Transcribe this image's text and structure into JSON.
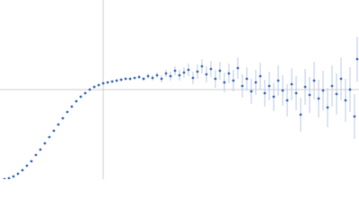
{
  "chart_data": {
    "type": "scatter",
    "xlim": [
      0,
      400
    ],
    "ylim": [
      0,
      200
    ],
    "vline": 115,
    "hline": 100,
    "series": [
      {
        "color": "#3a66b8",
        "error_color": "#b9c9e8",
        "x": [
          5,
          10,
          15,
          20,
          25,
          30,
          35,
          40,
          45,
          50,
          55,
          60,
          65,
          70,
          75,
          80,
          85,
          90,
          95,
          100,
          105,
          110,
          115,
          120,
          125,
          130,
          135,
          140,
          145,
          150,
          155,
          160,
          165,
          170,
          175,
          180,
          185,
          190,
          195,
          200,
          205,
          210,
          215,
          220,
          225,
          230,
          235,
          240,
          245,
          250,
          255,
          260,
          265,
          270,
          275,
          280,
          285,
          290,
          295,
          300,
          305,
          310,
          315,
          320,
          325,
          330,
          335,
          340,
          345,
          350,
          355,
          360,
          365,
          370,
          375,
          380,
          385,
          390,
          395,
          398
        ],
        "values": [
          0,
          1,
          3,
          6,
          10,
          15,
          20,
          27,
          33,
          40,
          47,
          54,
          61,
          68,
          75,
          81,
          87,
          92,
          96,
          100,
          103,
          105,
          107,
          108,
          109,
          110,
          111,
          112,
          112,
          113,
          114,
          112,
          115,
          113,
          116,
          112,
          118,
          115,
          121,
          116,
          119,
          122,
          113,
          120,
          126,
          117,
          123,
          112,
          121,
          108,
          118,
          110,
          124,
          104,
          112,
          98,
          108,
          115,
          96,
          104,
          92,
          110,
          99,
          88,
          106,
          96,
          72,
          103,
          94,
          110,
          90,
          99,
          80,
          104,
          95,
          112,
          88,
          100,
          70,
          134
        ],
        "errors": [
          0.5,
          0.5,
          0.5,
          0.5,
          0.5,
          0.5,
          0.5,
          0.5,
          0.5,
          0.5,
          0.5,
          0.5,
          0.5,
          0.5,
          0.5,
          0.5,
          0.5,
          0.5,
          1,
          1,
          1,
          1,
          1,
          1,
          1,
          1.5,
          1.5,
          1.5,
          1.5,
          1.5,
          2,
          2,
          3,
          3,
          3,
          4,
          4,
          5,
          5,
          6,
          6,
          7,
          7,
          8,
          8,
          9,
          9,
          10,
          10,
          11,
          11,
          12,
          12,
          13,
          13,
          14,
          14,
          15,
          15,
          16,
          16,
          17,
          17,
          18,
          18,
          19,
          19,
          20,
          20,
          21,
          21,
          22,
          22,
          23,
          23,
          24,
          24,
          25,
          25,
          25
        ]
      }
    ]
  }
}
